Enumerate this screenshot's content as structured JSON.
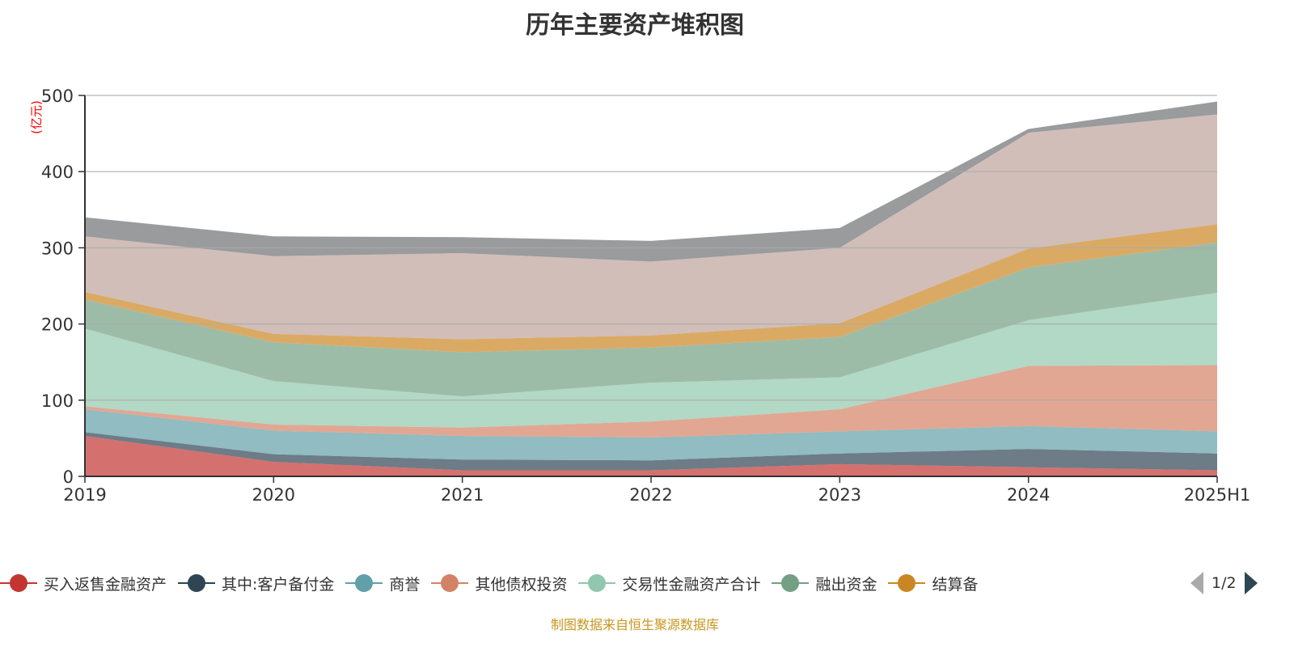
{
  "chart_data": {
    "type": "area",
    "stacked": true,
    "title": "历年主要资产堆积图",
    "ylabel": "(亿元)",
    "xlabel": "",
    "categories": [
      "2019",
      "2020",
      "2021",
      "2022",
      "2023",
      "2024",
      "2025H1"
    ],
    "ylim": [
      0,
      500
    ],
    "yticks": [
      0,
      100,
      200,
      300,
      400,
      500
    ],
    "grid": true,
    "legend_position": "bottom",
    "series": [
      {
        "name": "买入返售金融资产",
        "color": "#c23531",
        "values": [
          53,
          19,
          8,
          8,
          16,
          12,
          8
        ]
      },
      {
        "name": "其中:客户备付金",
        "color": "#2f4554",
        "values": [
          5,
          10,
          14,
          13,
          14,
          24,
          22
        ]
      },
      {
        "name": "商誉",
        "color": "#61a0a8",
        "values": [
          30,
          31,
          31,
          30,
          29,
          30,
          29
        ]
      },
      {
        "name": "其他债权投资",
        "color": "#d48265",
        "values": [
          4,
          8,
          11,
          21,
          29,
          79,
          87
        ]
      },
      {
        "name": "交易性金融资产合计",
        "color": "#91c7ae",
        "values": [
          102,
          57,
          41,
          51,
          42,
          60,
          95
        ]
      },
      {
        "name": "融出资金",
        "color": "#749f83",
        "values": [
          38,
          51,
          58,
          46,
          53,
          69,
          66
        ]
      },
      {
        "name": "结算备",
        "color": "#ca8622",
        "values": [
          10,
          11,
          17,
          16,
          18,
          25,
          24
        ]
      },
      {
        "color": "#bda29a",
        "values": [
          73,
          102,
          113,
          97,
          99,
          152,
          144
        ]
      },
      {
        "color": "#6e7074",
        "values": [
          25,
          26,
          21,
          27,
          26,
          5,
          17
        ]
      }
    ]
  },
  "legend": {
    "page": "1/2"
  },
  "source": "制图数据来自恒生聚源数据库"
}
